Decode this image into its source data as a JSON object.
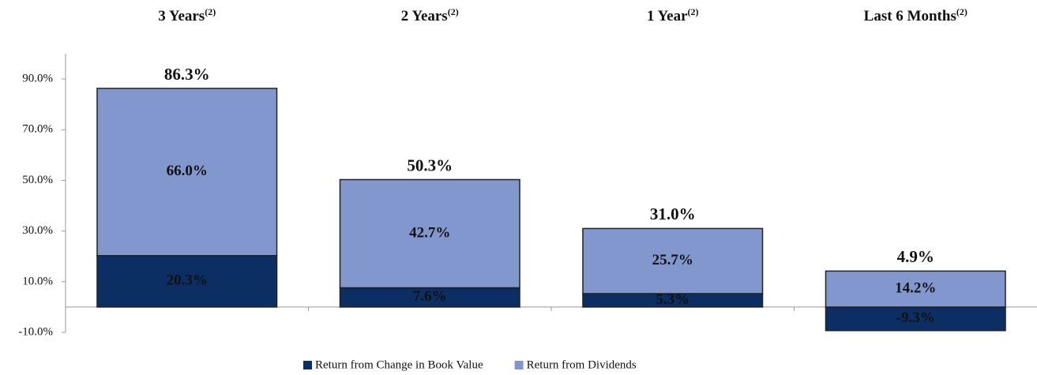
{
  "chart_data": {
    "type": "stacked_bar",
    "categories": [
      "3 Years",
      "2 Years",
      "1 Year",
      "Last 6 Months"
    ],
    "category_notes": [
      "(2)",
      "(2)",
      "(2)",
      "(2)"
    ],
    "series": [
      {
        "name": "Return from Change in Book Value",
        "color": "#0b2e63",
        "values": [
          20.3,
          7.6,
          5.3,
          -9.3
        ],
        "value_labels": [
          "20.3%",
          "7.6%",
          "5.3%",
          "-9.3%"
        ]
      },
      {
        "name": "Return from Dividends",
        "color": "#8197cd",
        "values": [
          66.0,
          42.7,
          25.7,
          14.2
        ],
        "value_labels": [
          "66.0%",
          "42.7%",
          "25.7%",
          "14.2%"
        ]
      }
    ],
    "totals": [
      86.3,
      50.3,
      31.0,
      4.9
    ],
    "total_labels": [
      "86.3%",
      "50.3%",
      "31.0%",
      "4.9%"
    ],
    "ylim": [
      -10,
      100
    ],
    "yticks": [
      {
        "value": -10,
        "label": "-10.0%"
      },
      {
        "value": 10,
        "label": "10.0%"
      },
      {
        "value": 30,
        "label": "30.0%"
      },
      {
        "value": 50,
        "label": "50.0%"
      },
      {
        "value": 70,
        "label": "70.0%"
      },
      {
        "value": 90,
        "label": "90.0%"
      }
    ],
    "legend": "bottom"
  }
}
